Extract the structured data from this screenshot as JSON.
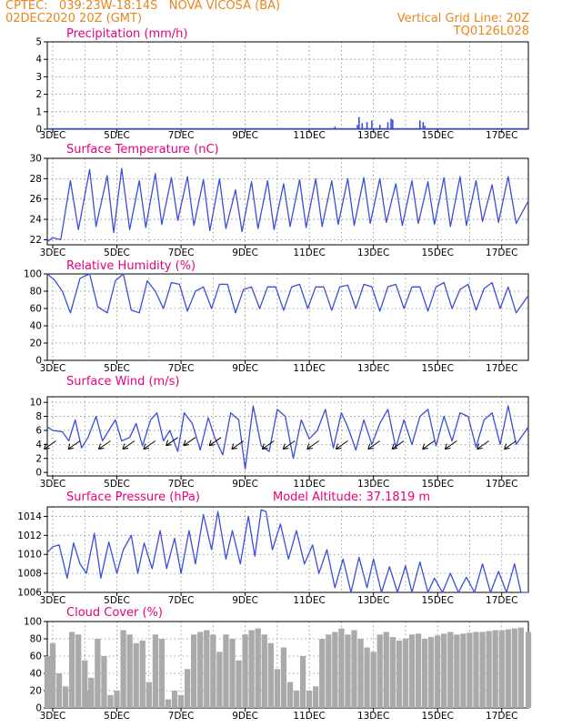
{
  "header": {
    "line1": "CPTEC:   039:23W-18:14S   NOVA VICOSA (BA)",
    "line2": "02DEC2020 20Z (GMT)",
    "right1": "Vertical Grid Line: 20Z",
    "right2": "TQ0126L028"
  },
  "colors": {
    "header": "#e8851e",
    "title": "#e6007e",
    "series": "#3a4fd8",
    "cloud": "#aaaaaa",
    "arrow": "#000000"
  },
  "x_labels": [
    "3DEC",
    "5DEC",
    "7DEC",
    "9DEC",
    "11DEC",
    "13DEC",
    "15DEC",
    "17DEC"
  ],
  "chart_data": [
    {
      "type": "bar",
      "title": "Precipitation (mm/h)",
      "ylim": [
        0,
        5
      ],
      "yticks": [
        0,
        1,
        2,
        3,
        4,
        5
      ],
      "xlim": [
        2.83,
        17.83
      ],
      "bars": [
        [
          9.3,
          0.05
        ],
        [
          11.5,
          0.05
        ],
        [
          11.8,
          0.15
        ],
        [
          12.5,
          0.25
        ],
        [
          12.55,
          0.7
        ],
        [
          12.65,
          0.35
        ],
        [
          12.8,
          0.4
        ],
        [
          12.95,
          0.5
        ],
        [
          13.2,
          0.25
        ],
        [
          13.45,
          0.4
        ],
        [
          13.55,
          0.6
        ],
        [
          13.6,
          0.55
        ],
        [
          14.45,
          0.5
        ],
        [
          14.55,
          0.4
        ],
        [
          14.6,
          0.2
        ]
      ]
    },
    {
      "type": "line",
      "title": "Surface Temperature (nC)",
      "ylim": [
        21.5,
        30
      ],
      "yticks": [
        22,
        24,
        26,
        28,
        30
      ],
      "xlim": [
        2.83,
        17.83
      ],
      "x": [
        2.83,
        3.0,
        3.25,
        3.55,
        3.8,
        4.15,
        4.35,
        4.7,
        4.9,
        5.15,
        5.4,
        5.7,
        5.9,
        6.2,
        6.4,
        6.7,
        6.9,
        7.2,
        7.4,
        7.7,
        7.9,
        8.2,
        8.4,
        8.7,
        8.9,
        9.2,
        9.4,
        9.7,
        9.9,
        10.2,
        10.4,
        10.7,
        10.9,
        11.2,
        11.4,
        11.7,
        11.9,
        12.2,
        12.4,
        12.7,
        12.9,
        13.2,
        13.4,
        13.7,
        13.9,
        14.2,
        14.4,
        14.7,
        14.9,
        15.2,
        15.4,
        15.7,
        15.9,
        16.2,
        16.4,
        16.7,
        16.9,
        17.2,
        17.45,
        17.83
      ],
      "y": [
        21.8,
        22.2,
        22.0,
        27.8,
        23.0,
        28.9,
        23.3,
        28.3,
        22.7,
        29.0,
        23.0,
        27.8,
        23.2,
        28.5,
        23.5,
        28.1,
        23.9,
        28.2,
        23.4,
        27.9,
        22.9,
        28.0,
        23.1,
        26.9,
        22.8,
        27.7,
        23.1,
        27.8,
        23.0,
        27.5,
        23.3,
        27.9,
        23.2,
        28.0,
        23.3,
        27.8,
        23.5,
        28.0,
        23.4,
        28.1,
        23.6,
        28.0,
        23.7,
        27.5,
        23.4,
        27.8,
        23.6,
        27.7,
        23.5,
        28.1,
        23.3,
        28.2,
        23.4,
        27.8,
        23.8,
        27.4,
        23.7,
        28.2,
        23.6,
        25.8
      ]
    },
    {
      "type": "line",
      "title": "Relative Humidity (%)",
      "ylim": [
        0,
        100
      ],
      "yticks": [
        0,
        20,
        40,
        60,
        80,
        100
      ],
      "xlim": [
        2.83,
        17.83
      ],
      "x": [
        2.83,
        3.05,
        3.3,
        3.55,
        3.85,
        4.15,
        4.4,
        4.7,
        4.95,
        5.2,
        5.45,
        5.7,
        5.95,
        6.2,
        6.45,
        6.7,
        6.95,
        7.2,
        7.45,
        7.7,
        7.95,
        8.2,
        8.45,
        8.7,
        8.95,
        9.2,
        9.45,
        9.7,
        9.95,
        10.2,
        10.45,
        10.7,
        10.95,
        11.2,
        11.45,
        11.7,
        11.95,
        12.2,
        12.45,
        12.7,
        12.95,
        13.2,
        13.45,
        13.7,
        13.95,
        14.2,
        14.45,
        14.7,
        14.95,
        15.2,
        15.45,
        15.7,
        15.95,
        16.2,
        16.45,
        16.7,
        16.95,
        17.2,
        17.45,
        17.83
      ],
      "y": [
        100,
        93,
        80,
        55,
        95,
        100,
        62,
        55,
        92,
        100,
        58,
        55,
        92,
        80,
        60,
        90,
        88,
        57,
        80,
        85,
        60,
        88,
        88,
        55,
        82,
        85,
        60,
        85,
        85,
        58,
        85,
        88,
        60,
        85,
        85,
        58,
        85,
        87,
        60,
        88,
        85,
        57,
        85,
        88,
        60,
        85,
        85,
        57,
        85,
        90,
        60,
        82,
        88,
        58,
        83,
        90,
        60,
        85,
        55,
        75
      ]
    },
    {
      "type": "line",
      "title": "Surface Wind (m/s)",
      "ylim": [
        -0.5,
        10.8
      ],
      "yticks": [
        0,
        2,
        4,
        6,
        8,
        10
      ],
      "xlim": [
        2.83,
        17.83
      ],
      "x": [
        2.83,
        3.0,
        3.3,
        3.5,
        3.7,
        3.9,
        4.1,
        4.35,
        4.55,
        4.75,
        4.95,
        5.15,
        5.4,
        5.6,
        5.8,
        6.05,
        6.25,
        6.45,
        6.65,
        6.9,
        7.1,
        7.35,
        7.6,
        7.85,
        8.05,
        8.3,
        8.55,
        8.8,
        9.0,
        9.25,
        9.5,
        9.75,
        10.0,
        10.25,
        10.5,
        10.75,
        11.0,
        11.25,
        11.5,
        11.75,
        12.0,
        12.2,
        12.45,
        12.7,
        12.95,
        13.2,
        13.45,
        13.7,
        13.95,
        14.2,
        14.45,
        14.7,
        14.95,
        15.2,
        15.45,
        15.7,
        15.95,
        16.2,
        16.45,
        16.7,
        16.95,
        17.2,
        17.45,
        17.83
      ],
      "y": [
        6.5,
        6.0,
        5.8,
        4.5,
        7.5,
        3.5,
        5.0,
        8.0,
        4.5,
        6.0,
        7.5,
        4.5,
        5.0,
        7.0,
        3.8,
        7.5,
        8.5,
        4.5,
        6.0,
        3.0,
        8.5,
        7.0,
        3.2,
        7.8,
        5.0,
        2.5,
        8.5,
        7.5,
        0.5,
        9.5,
        3.8,
        3.0,
        9.0,
        8.0,
        2.0,
        7.5,
        4.8,
        6.0,
        9.0,
        3.5,
        8.5,
        6.5,
        3.2,
        7.5,
        4.0,
        7.0,
        9.0,
        3.5,
        7.5,
        4.0,
        8.0,
        9.0,
        3.8,
        8.0,
        4.5,
        8.5,
        8.0,
        3.6,
        7.5,
        8.5,
        4.0,
        9.5,
        4.0,
        6.5
      ],
      "arrows": [
        {
          "x": 3.1,
          "y": 4.5
        },
        {
          "x": 3.85,
          "y": 4.5
        },
        {
          "x": 4.8,
          "y": 4.5
        },
        {
          "x": 5.55,
          "y": 4.5
        },
        {
          "x": 6.2,
          "y": 4.5
        },
        {
          "x": 6.9,
          "y": 5.0
        },
        {
          "x": 7.45,
          "y": 5.0
        },
        {
          "x": 8.25,
          "y": 5.0
        },
        {
          "x": 8.95,
          "y": 4.5
        },
        {
          "x": 9.9,
          "y": 4.5
        },
        {
          "x": 10.55,
          "y": 4.5
        },
        {
          "x": 11.3,
          "y": 4.5
        },
        {
          "x": 12.2,
          "y": 4.5
        },
        {
          "x": 13.2,
          "y": 4.5
        },
        {
          "x": 13.95,
          "y": 4.5
        },
        {
          "x": 14.9,
          "y": 4.5
        },
        {
          "x": 15.6,
          "y": 4.5
        },
        {
          "x": 16.6,
          "y": 4.5
        },
        {
          "x": 17.45,
          "y": 4.5
        }
      ]
    },
    {
      "type": "line",
      "title": "Surface Pressure (hPa)",
      "annotation": "Model Altitude: 37.1819 m",
      "ylim": [
        1006,
        1015
      ],
      "yticks": [
        1006,
        1008,
        1010,
        1012,
        1014
      ],
      "xlim": [
        2.83,
        17.83
      ],
      "x": [
        2.83,
        3.0,
        3.2,
        3.45,
        3.65,
        3.85,
        4.05,
        4.3,
        4.5,
        4.75,
        5.0,
        5.2,
        5.45,
        5.65,
        5.85,
        6.1,
        6.35,
        6.55,
        6.8,
        7.0,
        7.25,
        7.45,
        7.7,
        7.95,
        8.15,
        8.4,
        8.6,
        8.85,
        9.1,
        9.3,
        9.5,
        9.65,
        9.85,
        10.1,
        10.35,
        10.6,
        10.85,
        11.1,
        11.3,
        11.55,
        11.8,
        12.05,
        12.3,
        12.55,
        12.8,
        13.0,
        13.25,
        13.5,
        13.75,
        14.0,
        14.2,
        14.45,
        14.7,
        14.9,
        15.15,
        15.4,
        15.65,
        15.9,
        16.15,
        16.4,
        16.65,
        16.9,
        17.15,
        17.4,
        17.6,
        17.83
      ],
      "y": [
        1010.2,
        1010.8,
        1011.0,
        1007.5,
        1011.2,
        1009.0,
        1008.0,
        1012.2,
        1007.5,
        1011.3,
        1008.0,
        1010.5,
        1012.0,
        1008.0,
        1011.2,
        1008.5,
        1012.5,
        1008.5,
        1011.7,
        1008.0,
        1012.5,
        1009.0,
        1014.2,
        1010.5,
        1014.5,
        1009.5,
        1012.5,
        1009.0,
        1014.0,
        1009.8,
        1014.7,
        1014.5,
        1010.5,
        1013.2,
        1009.5,
        1012.5,
        1009.0,
        1011.0,
        1008.0,
        1010.5,
        1006.5,
        1009.5,
        1006.0,
        1009.7,
        1006.5,
        1009.5,
        1006.0,
        1008.7,
        1005.5,
        1008.8,
        1005.5,
        1009.2,
        1005.5,
        1007.5,
        1005.5,
        1008.0,
        1005.5,
        1007.6,
        1006.0,
        1009.0,
        1005.2,
        1008.2,
        1005.5,
        1009.0,
        1005.0,
        1005.0
      ]
    },
    {
      "type": "bar",
      "title": "Cloud Cover (%)",
      "ylim": [
        0,
        100
      ],
      "yticks": [
        0,
        20,
        40,
        60,
        80,
        100
      ],
      "xlim": [
        2.83,
        17.83
      ],
      "x": [
        2.83,
        3.0,
        3.2,
        3.4,
        3.6,
        3.8,
        4.0,
        4.1,
        4.2,
        4.4,
        4.6,
        4.8,
        5.0,
        5.2,
        5.4,
        5.6,
        5.8,
        6.0,
        6.2,
        6.4,
        6.6,
        6.8,
        7.0,
        7.2,
        7.4,
        7.6,
        7.8,
        8.0,
        8.2,
        8.4,
        8.6,
        8.8,
        9.0,
        9.2,
        9.4,
        9.6,
        9.8,
        10.0,
        10.2,
        10.4,
        10.6,
        10.8,
        11.0,
        11.2,
        11.4,
        11.6,
        11.8,
        12.0,
        12.2,
        12.4,
        12.6,
        12.8,
        13.0,
        13.2,
        13.4,
        13.6,
        13.8,
        14.0,
        14.2,
        14.4,
        14.6,
        14.8,
        15.0,
        15.2,
        15.4,
        15.6,
        15.8,
        16.0,
        16.2,
        16.4,
        16.6,
        16.8,
        17.0,
        17.2,
        17.4,
        17.6,
        17.83
      ],
      "y": [
        60,
        75,
        40,
        25,
        88,
        85,
        55,
        20,
        35,
        80,
        60,
        15,
        20,
        90,
        85,
        75,
        78,
        30,
        85,
        80,
        10,
        20,
        15,
        45,
        85,
        88,
        90,
        85,
        65,
        85,
        80,
        55,
        85,
        90,
        92,
        85,
        75,
        45,
        70,
        30,
        20,
        60,
        20,
        25,
        80,
        85,
        88,
        92,
        85,
        90,
        80,
        70,
        65,
        85,
        88,
        82,
        78,
        80,
        85,
        86,
        80,
        82,
        84,
        86,
        88,
        85,
        86,
        87,
        88,
        88,
        89,
        90,
        90,
        91,
        92,
        93,
        88
      ]
    }
  ]
}
